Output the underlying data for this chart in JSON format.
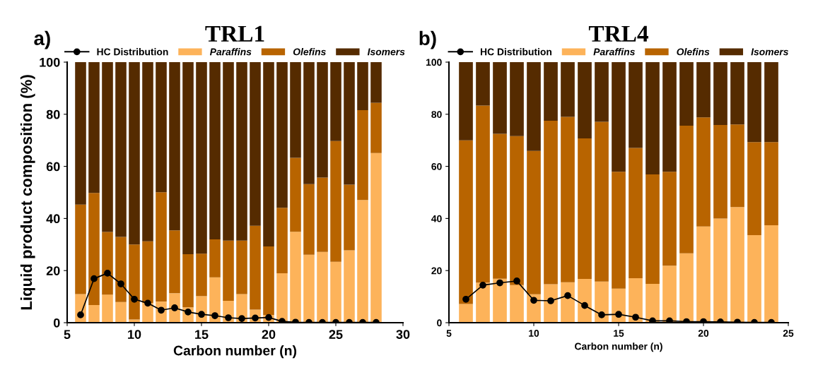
{
  "chart_data": [
    {
      "type": "bar",
      "title": "TRL1",
      "xlabel": "Carbon number (n)",
      "ylabel": "Liquid product composition (%)",
      "annotations": [
        "a)"
      ],
      "x": [
        6,
        7,
        8,
        9,
        10,
        11,
        12,
        13,
        14,
        15,
        16,
        17,
        18,
        19,
        20,
        21,
        22,
        23,
        24,
        25,
        26,
        27,
        28
      ],
      "stacked": true,
      "xlim": [
        5,
        30
      ],
      "xticks": [
        5,
        10,
        15,
        20,
        25,
        30
      ],
      "ylim": [
        0,
        100
      ],
      "yticks": [
        0,
        20,
        40,
        60,
        80,
        100
      ],
      "legend": "top",
      "grid": false,
      "series": [
        {
          "name": "HC Distribution",
          "type": "line",
          "marker": "circle",
          "color": "#000000",
          "values": [
            3.0,
            16.9,
            19.0,
            14.9,
            9.0,
            7.5,
            4.8,
            5.7,
            4.1,
            3.2,
            2.7,
            1.9,
            1.6,
            1.8,
            2.0,
            0.5,
            0.2,
            0.1,
            0.1,
            0.1,
            0.1,
            0.1,
            0.1
          ]
        },
        {
          "name": "Paraffins",
          "color": "#fdb35a",
          "values": [
            11.0,
            6.8,
            10.8,
            7.9,
            1.2,
            7.6,
            8.1,
            11.3,
            5.9,
            10.2,
            17.4,
            8.4,
            11.0,
            5.0,
            3.0,
            19.0,
            34.9,
            26.1,
            27.2,
            23.4,
            27.8,
            47.1,
            65.1
          ]
        },
        {
          "name": "Olefins",
          "color": "#b86400",
          "values": [
            34.3,
            43.0,
            24.0,
            25.0,
            28.8,
            23.6,
            42.0,
            24.1,
            20.4,
            16.3,
            14.6,
            23.1,
            20.5,
            32.2,
            26.3,
            25.1,
            28.4,
            27.1,
            28.5,
            46.3,
            25.2,
            34.5,
            19.3
          ]
        },
        {
          "name": "Isomers",
          "color": "#552b00",
          "values": [
            54.7,
            50.2,
            65.2,
            67.1,
            70.0,
            68.8,
            49.9,
            64.6,
            73.7,
            73.5,
            68.0,
            68.5,
            68.5,
            62.8,
            70.7,
            55.9,
            36.7,
            46.8,
            44.3,
            30.3,
            47.0,
            18.4,
            15.6
          ]
        }
      ]
    },
    {
      "type": "bar",
      "title": "TRL4",
      "xlabel": "Carbon number (n)",
      "annotations": [
        "b)"
      ],
      "x": [
        6,
        7,
        8,
        9,
        10,
        11,
        12,
        13,
        14,
        15,
        16,
        17,
        18,
        19,
        20,
        21,
        22,
        23,
        24
      ],
      "stacked": true,
      "xlim": [
        5,
        25
      ],
      "xticks": [
        5,
        10,
        15,
        20,
        25
      ],
      "ylim": [
        0,
        100
      ],
      "yticks": [
        0,
        20,
        40,
        60,
        80,
        100
      ],
      "legend": "top",
      "grid": false,
      "series": [
        {
          "name": "HC Distribution",
          "type": "line",
          "marker": "circle",
          "color": "#000000",
          "values": [
            9.0,
            14.4,
            15.3,
            16.0,
            8.6,
            8.4,
            10.4,
            6.6,
            3.0,
            3.2,
            2.1,
            0.7,
            0.7,
            0.4,
            0.4,
            0.3,
            0.2,
            0.1,
            0.1
          ]
        },
        {
          "name": "Paraffins",
          "color": "#fdb35a",
          "values": [
            7.2,
            15.4,
            16.9,
            14.4,
            10.9,
            14.8,
            15.5,
            16.8,
            15.8,
            13.1,
            17.1,
            14.9,
            21.9,
            26.6,
            36.9,
            40.0,
            44.4,
            33.6,
            37.4
          ]
        },
        {
          "name": "Olefins",
          "color": "#b86400",
          "values": [
            62.8,
            67.9,
            55.6,
            57.2,
            55.0,
            62.7,
            63.5,
            53.9,
            61.3,
            44.8,
            50.0,
            42.0,
            36.0,
            49.0,
            41.9,
            35.9,
            31.7,
            35.7,
            31.9
          ]
        },
        {
          "name": "Isomers",
          "color": "#552b00",
          "values": [
            30.0,
            16.7,
            27.5,
            28.4,
            34.1,
            22.5,
            21.0,
            29.3,
            22.9,
            42.1,
            32.9,
            43.1,
            42.1,
            24.4,
            21.2,
            24.1,
            23.9,
            30.7,
            30.7
          ]
        }
      ]
    }
  ]
}
